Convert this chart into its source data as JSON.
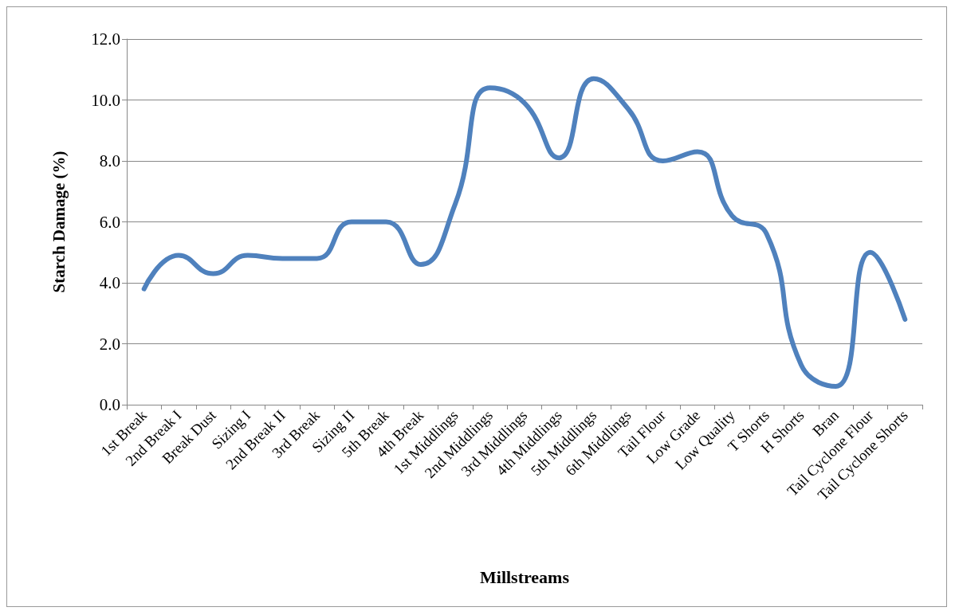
{
  "chart_data": {
    "type": "line",
    "xlabel": "Millstreams",
    "ylabel": "Starch Damage (%)",
    "categories": [
      "1st Break",
      "2nd Break I",
      "Break Dust",
      "Sizing I",
      "2nd Break II",
      "3rd Break",
      "Sizing II",
      "5th Break",
      "4th Break",
      "1st Middlings",
      "2nd Middlings",
      "3rd Middlings",
      "4th Middlings",
      "5th Middlings",
      "6th Middlings",
      "Tail Flour",
      "Low Grade",
      "Low Quality",
      "T Shorts",
      "H Shorts",
      "Bran",
      "Tail Cyclone Flour",
      "Tail Cyclone Shorts"
    ],
    "series": [
      {
        "color": "#4f81bd",
        "values": [
          3.8,
          4.9,
          4.3,
          4.9,
          4.8,
          4.8,
          6.0,
          6.0,
          4.6,
          6.6,
          10.4,
          9.9,
          8.1,
          10.7,
          9.7,
          8.0,
          8.3,
          6.2,
          5.6,
          1.3,
          0.6,
          5.0,
          2.8
        ]
      }
    ],
    "ylim": [
      0,
      12
    ],
    "yticks": [
      {
        "value": 0,
        "label": "0.0"
      },
      {
        "value": 2,
        "label": "2.0"
      },
      {
        "value": 4,
        "label": "4.0"
      },
      {
        "value": 6,
        "label": "6.0"
      },
      {
        "value": 8,
        "label": "8.0"
      },
      {
        "value": 10,
        "label": "10.0"
      },
      {
        "value": 12,
        "label": "12.0"
      }
    ],
    "grid": "y",
    "marker": "none",
    "line_style": "solid"
  }
}
